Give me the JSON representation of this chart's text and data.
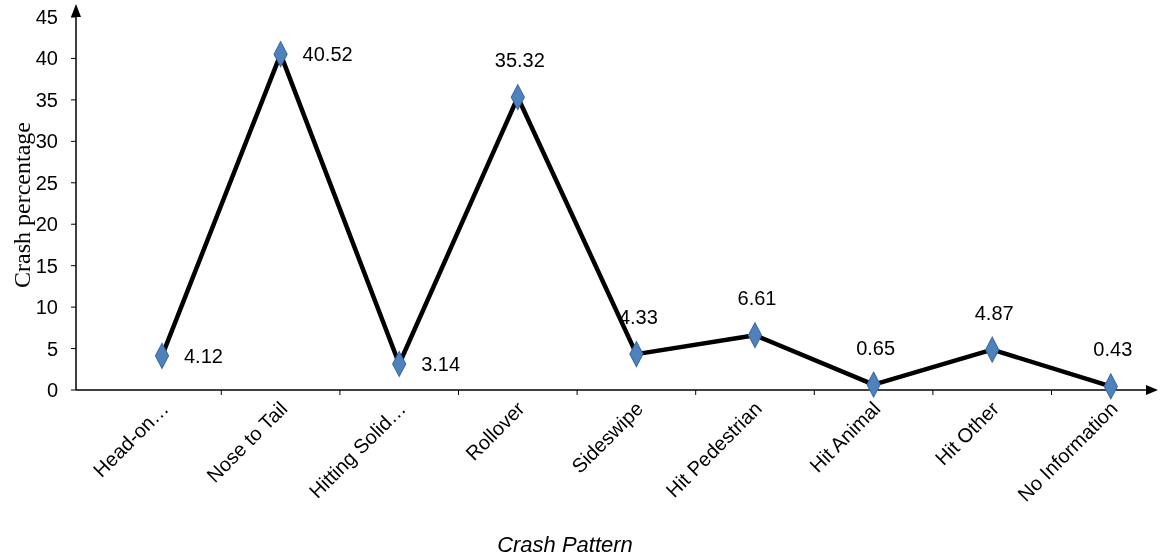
{
  "chart_data": {
    "type": "line",
    "xlabel": "Crash Pattern",
    "ylabel": "Crash percentage",
    "categories": [
      "Head-on…",
      "Nose to Tail",
      "Hitting Solid…",
      "Rollover",
      "Sideswipe",
      "Hit Pedestrian",
      "Hit Animal",
      "Hit Other",
      "No Information"
    ],
    "series": [
      {
        "color": "#000000",
        "colors": [
          "#4f81bd",
          "#4f81bd",
          "#4f81bd",
          "#4f81bd",
          "#4f81bd",
          "#4f81bd",
          "#4f81bd",
          "#4f81bd",
          "#4f81bd"
        ],
        "values": [
          4.12,
          40.52,
          3.14,
          35.32,
          4.33,
          6.61,
          0.65,
          4.87,
          0.43
        ]
      }
    ],
    "marker": "diamond",
    "data_labels": true,
    "ylim": [
      0,
      45
    ],
    "yticks": [
      0,
      5,
      10,
      15,
      20,
      25,
      30,
      35,
      40,
      45
    ]
  }
}
